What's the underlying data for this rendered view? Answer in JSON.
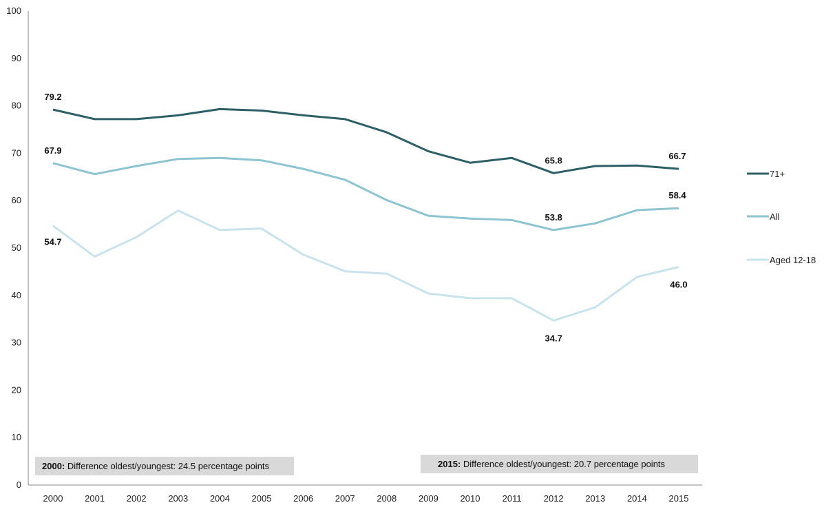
{
  "chart_data": {
    "type": "line",
    "x": [
      "2000",
      "2001",
      "2002",
      "2003",
      "2004",
      "2005",
      "2006",
      "2007",
      "2008",
      "2009",
      "2010",
      "2011",
      "2012",
      "2013",
      "2014",
      "2015"
    ],
    "ylim": [
      0,
      100
    ],
    "yticks": [
      "0",
      "10",
      "20",
      "30",
      "40",
      "50",
      "60",
      "70",
      "80",
      "90",
      "100"
    ],
    "grid": false,
    "legend_position": "right",
    "series": [
      {
        "name": "71+",
        "color": "#2d5f66",
        "values": [
          79.2,
          77.2,
          77.2,
          78.0,
          79.3,
          79.0,
          78.0,
          77.2,
          74.4,
          70.4,
          68.0,
          69.0,
          65.8,
          67.3,
          67.4,
          66.7
        ]
      },
      {
        "name": "All",
        "color": "#8cc5d1",
        "values": [
          67.9,
          65.6,
          67.3,
          68.8,
          69.0,
          68.5,
          66.7,
          64.4,
          60.1,
          56.8,
          56.2,
          55.9,
          53.8,
          55.2,
          58.0,
          58.4
        ]
      },
      {
        "name": "Aged 12-18",
        "color": "#c9e3ed",
        "values": [
          54.7,
          48.2,
          52.3,
          57.9,
          53.8,
          54.1,
          48.6,
          45.1,
          44.6,
          40.4,
          39.4,
          39.4,
          34.7,
          37.5,
          43.9,
          46.0
        ]
      }
    ],
    "data_labels": [
      {
        "series": 0,
        "index": 0,
        "text": "79.2"
      },
      {
        "series": 0,
        "index": 12,
        "text": "65.8"
      },
      {
        "series": 0,
        "index": 15,
        "text": "66.7"
      },
      {
        "series": 1,
        "index": 0,
        "text": "67.9"
      },
      {
        "series": 1,
        "index": 12,
        "text": "53.8"
      },
      {
        "series": 1,
        "index": 15,
        "text": "58.4"
      },
      {
        "series": 2,
        "index": 0,
        "text": "54.7"
      },
      {
        "series": 2,
        "index": 12,
        "text": "34.7"
      },
      {
        "series": 2,
        "index": 15,
        "text": "46.0"
      }
    ],
    "annotations": [
      {
        "bold": "2000:",
        "text": " Difference oldest/youngest: 24.5 percentage points"
      },
      {
        "bold": "2015:",
        "text": " Difference oldest/youngest: 20.7 percentage points"
      }
    ]
  }
}
